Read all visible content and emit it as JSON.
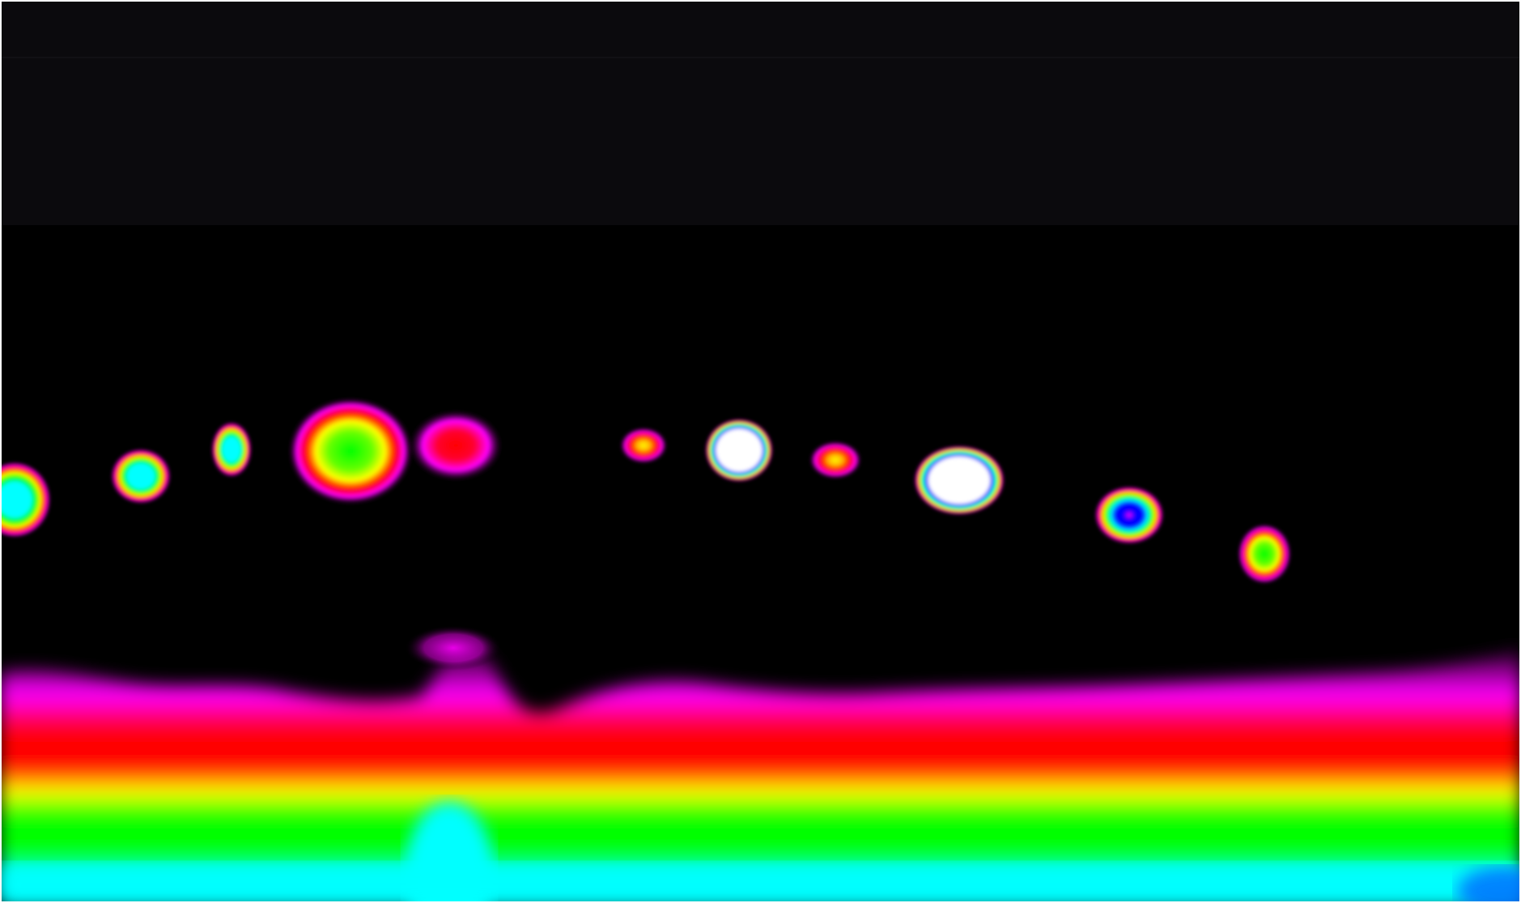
{
  "image": {
    "kind": "false-color thermal image",
    "background_color": "#000000",
    "header_band_color": "#0b0a0d",
    "border_color": "#ffffff"
  },
  "palette": {
    "outer": "#ff00ff",
    "red": "#ff0000",
    "yellow": "#ffff00",
    "green": "#00ff00",
    "cyan": "#00ffff",
    "blue": "#0000ff",
    "white": "#ffffff"
  },
  "hot_spots": [
    {
      "name": "spot-1",
      "peak": "cyan"
    },
    {
      "name": "spot-2",
      "peak": "cyan"
    },
    {
      "name": "spot-3",
      "peak": "cyan"
    },
    {
      "name": "spot-4",
      "peak": "green"
    },
    {
      "name": "spot-5",
      "peak": "red"
    },
    {
      "name": "spot-6",
      "peak": "yellow"
    },
    {
      "name": "spot-7",
      "peak": "white"
    },
    {
      "name": "spot-8",
      "peak": "yellow"
    },
    {
      "name": "spot-9",
      "peak": "white"
    },
    {
      "name": "spot-10",
      "peak": "blue"
    },
    {
      "name": "spot-11",
      "peak": "green"
    }
  ],
  "heat_band": {
    "layers": [
      "magenta",
      "red",
      "yellow",
      "green",
      "cyan"
    ]
  }
}
